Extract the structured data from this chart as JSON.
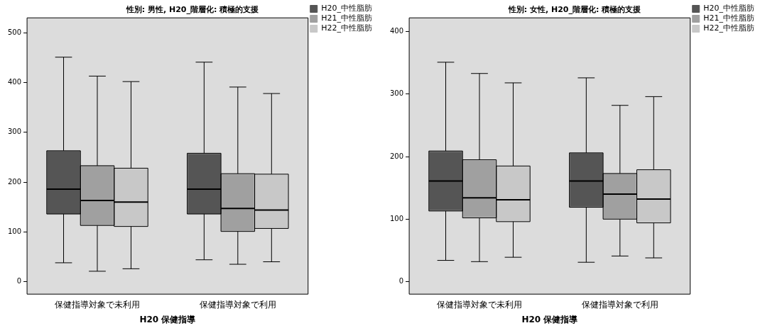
{
  "chart_data": [
    {
      "type": "box",
      "title": "性別: 男性, H20_階層化: 積極的支援",
      "xlabel": "H20 保健指導",
      "categories": [
        "保健指導対象で未利用",
        "保健指導対象で利用"
      ],
      "ylim": [
        -25,
        530
      ],
      "yticks": [
        0,
        100,
        200,
        300,
        400,
        500
      ],
      "grid": false,
      "legend": "top right",
      "series": [
        {
          "name": "H20_中性脂肪",
          "color": "#555555",
          "boxes": [
            {
              "low": 38,
              "q1": 136,
              "median": 186,
              "q3": 263,
              "high": 451
            },
            {
              "low": 44,
              "q1": 136,
              "median": 186,
              "q3": 258,
              "high": 441
            }
          ]
        },
        {
          "name": "H21_中性脂肪",
          "color": "#a0a0a0",
          "boxes": [
            {
              "low": 21,
              "q1": 113,
              "median": 163,
              "q3": 233,
              "high": 413
            },
            {
              "low": 35,
              "q1": 101,
              "median": 147,
              "q3": 217,
              "high": 391
            }
          ]
        },
        {
          "name": "H22_中性脂肪",
          "color": "#c8c8c8",
          "boxes": [
            {
              "low": 26,
              "q1": 111,
              "median": 160,
              "q3": 228,
              "high": 402
            },
            {
              "low": 40,
              "q1": 107,
              "median": 144,
              "q3": 216,
              "high": 378
            }
          ]
        }
      ]
    },
    {
      "type": "box",
      "title": "性別: 女性, H20_階層化: 積極的支援",
      "xlabel": "H20 保健指導",
      "categories": [
        "保健指導対象で未利用",
        "保健指導対象で利用"
      ],
      "ylim": [
        -20,
        422
      ],
      "yticks": [
        0,
        100,
        200,
        300,
        400
      ],
      "grid": false,
      "legend": "top right",
      "series": [
        {
          "name": "H20_中性脂肪",
          "color": "#555555",
          "boxes": [
            {
              "low": 34,
              "q1": 113,
              "median": 161,
              "q3": 209,
              "high": 351
            },
            {
              "low": 31,
              "q1": 119,
              "median": 161,
              "q3": 206,
              "high": 326
            }
          ]
        },
        {
          "name": "H21_中性脂肪",
          "color": "#a0a0a0",
          "boxes": [
            {
              "low": 32,
              "q1": 102,
              "median": 134,
              "q3": 195,
              "high": 333
            },
            {
              "low": 41,
              "q1": 100,
              "median": 140,
              "q3": 173,
              "high": 282
            }
          ]
        },
        {
          "name": "H22_中性脂肪",
          "color": "#c8c8c8",
          "boxes": [
            {
              "low": 39,
              "q1": 96,
              "median": 131,
              "q3": 185,
              "high": 318
            },
            {
              "low": 38,
              "q1": 94,
              "median": 132,
              "q3": 179,
              "high": 296
            }
          ]
        }
      ]
    }
  ]
}
